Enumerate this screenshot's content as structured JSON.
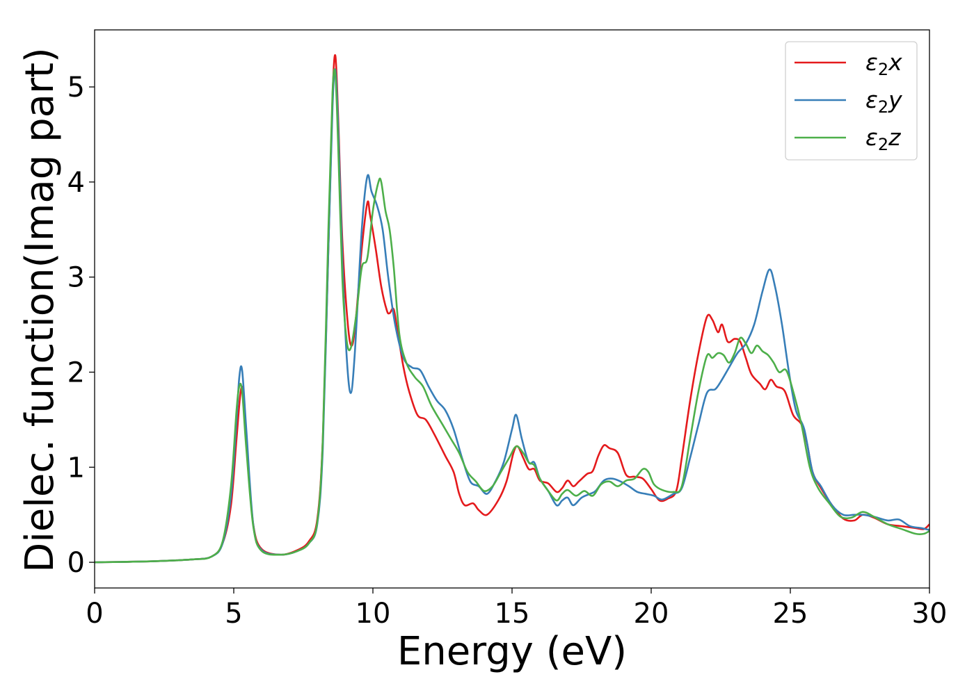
{
  "chart_data": {
    "type": "line",
    "title": "",
    "xlabel": "Energy (eV)",
    "ylabel": "Dielec. function(Imag part)",
    "xlim": [
      0,
      30
    ],
    "ylim": [
      -0.27,
      5.6
    ],
    "xticks": [
      0,
      5,
      10,
      15,
      20,
      25,
      30
    ],
    "yticks": [
      0,
      1,
      2,
      3,
      4,
      5
    ],
    "grid": false,
    "legend_position": "upper right",
    "series": [
      {
        "name": "ε₂x",
        "legend_base": "ε",
        "legend_sub": "2",
        "legend_var": "x",
        "color": "#e41a1c",
        "points": [
          [
            0,
            0
          ],
          [
            2,
            0.01
          ],
          [
            3.5,
            0.03
          ],
          [
            4.2,
            0.06
          ],
          [
            4.6,
            0.2
          ],
          [
            4.9,
            0.6
          ],
          [
            5.1,
            1.3
          ],
          [
            5.25,
            1.8
          ],
          [
            5.35,
            1.75
          ],
          [
            5.5,
            1.1
          ],
          [
            5.7,
            0.4
          ],
          [
            6,
            0.14
          ],
          [
            6.7,
            0.08
          ],
          [
            7.3,
            0.13
          ],
          [
            7.7,
            0.22
          ],
          [
            8,
            0.45
          ],
          [
            8.2,
            1.3
          ],
          [
            8.4,
            3.3
          ],
          [
            8.55,
            4.9
          ],
          [
            8.65,
            5.33
          ],
          [
            8.75,
            4.7
          ],
          [
            8.9,
            3.4
          ],
          [
            9.1,
            2.5
          ],
          [
            9.25,
            2.28
          ],
          [
            9.4,
            2.6
          ],
          [
            9.6,
            3.3
          ],
          [
            9.8,
            3.78
          ],
          [
            9.9,
            3.65
          ],
          [
            10.1,
            3.3
          ],
          [
            10.3,
            2.9
          ],
          [
            10.5,
            2.65
          ],
          [
            10.6,
            2.62
          ],
          [
            10.75,
            2.66
          ],
          [
            10.9,
            2.4
          ],
          [
            11.1,
            2.05
          ],
          [
            11.3,
            1.8
          ],
          [
            11.6,
            1.55
          ],
          [
            11.9,
            1.5
          ],
          [
            12.2,
            1.35
          ],
          [
            12.6,
            1.12
          ],
          [
            12.9,
            0.95
          ],
          [
            13.1,
            0.72
          ],
          [
            13.3,
            0.6
          ],
          [
            13.6,
            0.62
          ],
          [
            13.8,
            0.55
          ],
          [
            14.1,
            0.5
          ],
          [
            14.5,
            0.65
          ],
          [
            14.8,
            0.85
          ],
          [
            15.05,
            1.15
          ],
          [
            15.2,
            1.22
          ],
          [
            15.4,
            1.1
          ],
          [
            15.6,
            0.98
          ],
          [
            15.8,
            0.98
          ],
          [
            16,
            0.86
          ],
          [
            16.3,
            0.83
          ],
          [
            16.6,
            0.74
          ],
          [
            16.8,
            0.78
          ],
          [
            17,
            0.86
          ],
          [
            17.2,
            0.8
          ],
          [
            17.4,
            0.85
          ],
          [
            17.7,
            0.93
          ],
          [
            17.9,
            0.96
          ],
          [
            18.1,
            1.12
          ],
          [
            18.3,
            1.23
          ],
          [
            18.5,
            1.2
          ],
          [
            18.8,
            1.15
          ],
          [
            19.1,
            0.92
          ],
          [
            19.4,
            0.9
          ],
          [
            19.7,
            0.88
          ],
          [
            20,
            0.77
          ],
          [
            20.3,
            0.65
          ],
          [
            20.6,
            0.67
          ],
          [
            20.9,
            0.75
          ],
          [
            21.1,
            1.1
          ],
          [
            21.4,
            1.7
          ],
          [
            21.7,
            2.2
          ],
          [
            22,
            2.58
          ],
          [
            22.2,
            2.55
          ],
          [
            22.4,
            2.42
          ],
          [
            22.55,
            2.5
          ],
          [
            22.75,
            2.32
          ],
          [
            23,
            2.35
          ],
          [
            23.2,
            2.32
          ],
          [
            23.4,
            2.15
          ],
          [
            23.6,
            1.98
          ],
          [
            23.9,
            1.88
          ],
          [
            24.1,
            1.82
          ],
          [
            24.3,
            1.92
          ],
          [
            24.5,
            1.85
          ],
          [
            24.8,
            1.8
          ],
          [
            25.1,
            1.55
          ],
          [
            25.4,
            1.45
          ],
          [
            25.6,
            1.25
          ],
          [
            25.8,
            0.95
          ],
          [
            26.1,
            0.78
          ],
          [
            26.5,
            0.6
          ],
          [
            26.9,
            0.46
          ],
          [
            27.3,
            0.44
          ],
          [
            27.6,
            0.5
          ],
          [
            28,
            0.47
          ],
          [
            28.5,
            0.4
          ],
          [
            29,
            0.38
          ],
          [
            29.5,
            0.36
          ],
          [
            29.8,
            0.35
          ],
          [
            30,
            0.4
          ]
        ]
      },
      {
        "name": "ε₂y",
        "legend_base": "ε",
        "legend_sub": "2",
        "legend_var": "y",
        "color": "#377eb8",
        "points": [
          [
            0,
            0
          ],
          [
            2,
            0.01
          ],
          [
            3.5,
            0.03
          ],
          [
            4.2,
            0.06
          ],
          [
            4.6,
            0.2
          ],
          [
            4.9,
            0.7
          ],
          [
            5.1,
            1.5
          ],
          [
            5.2,
            1.95
          ],
          [
            5.3,
            2.02
          ],
          [
            5.45,
            1.4
          ],
          [
            5.7,
            0.4
          ],
          [
            6,
            0.13
          ],
          [
            6.7,
            0.08
          ],
          [
            7.3,
            0.12
          ],
          [
            7.7,
            0.2
          ],
          [
            8,
            0.4
          ],
          [
            8.2,
            1.2
          ],
          [
            8.4,
            3.3
          ],
          [
            8.55,
            4.8
          ],
          [
            8.65,
            5.18
          ],
          [
            8.75,
            4.6
          ],
          [
            8.9,
            3.2
          ],
          [
            9.05,
            2.2
          ],
          [
            9.2,
            1.78
          ],
          [
            9.35,
            2.2
          ],
          [
            9.6,
            3.5
          ],
          [
            9.8,
            4.06
          ],
          [
            9.95,
            3.9
          ],
          [
            10.15,
            3.75
          ],
          [
            10.35,
            3.5
          ],
          [
            10.55,
            3.0
          ],
          [
            10.8,
            2.5
          ],
          [
            11.1,
            2.15
          ],
          [
            11.4,
            2.05
          ],
          [
            11.7,
            2.02
          ],
          [
            12,
            1.85
          ],
          [
            12.3,
            1.7
          ],
          [
            12.6,
            1.6
          ],
          [
            12.9,
            1.4
          ],
          [
            13.2,
            1.1
          ],
          [
            13.5,
            0.85
          ],
          [
            13.8,
            0.8
          ],
          [
            14.1,
            0.72
          ],
          [
            14.4,
            0.85
          ],
          [
            14.7,
            1.05
          ],
          [
            15,
            1.4
          ],
          [
            15.15,
            1.55
          ],
          [
            15.35,
            1.3
          ],
          [
            15.6,
            1.05
          ],
          [
            15.8,
            1.05
          ],
          [
            16,
            0.88
          ],
          [
            16.3,
            0.75
          ],
          [
            16.6,
            0.6
          ],
          [
            16.8,
            0.65
          ],
          [
            17,
            0.68
          ],
          [
            17.2,
            0.6
          ],
          [
            17.5,
            0.68
          ],
          [
            17.8,
            0.72
          ],
          [
            18,
            0.75
          ],
          [
            18.3,
            0.86
          ],
          [
            18.6,
            0.88
          ],
          [
            18.9,
            0.85
          ],
          [
            19.2,
            0.8
          ],
          [
            19.5,
            0.74
          ],
          [
            19.8,
            0.72
          ],
          [
            20.1,
            0.7
          ],
          [
            20.4,
            0.66
          ],
          [
            20.8,
            0.72
          ],
          [
            21.1,
            0.78
          ],
          [
            21.4,
            1.1
          ],
          [
            21.7,
            1.45
          ],
          [
            22,
            1.78
          ],
          [
            22.3,
            1.82
          ],
          [
            22.5,
            1.9
          ],
          [
            22.8,
            2.05
          ],
          [
            23.1,
            2.2
          ],
          [
            23.4,
            2.3
          ],
          [
            23.7,
            2.5
          ],
          [
            24,
            2.85
          ],
          [
            24.25,
            3.08
          ],
          [
            24.45,
            2.9
          ],
          [
            24.7,
            2.5
          ],
          [
            24.95,
            2.0
          ],
          [
            25.2,
            1.6
          ],
          [
            25.5,
            1.4
          ],
          [
            25.8,
            0.95
          ],
          [
            26.1,
            0.8
          ],
          [
            26.5,
            0.6
          ],
          [
            26.9,
            0.5
          ],
          [
            27.3,
            0.5
          ],
          [
            27.6,
            0.5
          ],
          [
            28,
            0.48
          ],
          [
            28.5,
            0.44
          ],
          [
            28.9,
            0.45
          ],
          [
            29.3,
            0.38
          ],
          [
            29.7,
            0.36
          ],
          [
            30,
            0.34
          ]
        ]
      },
      {
        "name": "ε₂z",
        "legend_base": "ε",
        "legend_sub": "2",
        "legend_var": "z",
        "color": "#4daf4a",
        "points": [
          [
            0,
            0
          ],
          [
            2,
            0.01
          ],
          [
            3.5,
            0.03
          ],
          [
            4.2,
            0.06
          ],
          [
            4.6,
            0.22
          ],
          [
            4.9,
            0.8
          ],
          [
            5.1,
            1.6
          ],
          [
            5.2,
            1.85
          ],
          [
            5.3,
            1.8
          ],
          [
            5.45,
            1.2
          ],
          [
            5.7,
            0.38
          ],
          [
            6,
            0.12
          ],
          [
            6.7,
            0.08
          ],
          [
            7.3,
            0.12
          ],
          [
            7.7,
            0.2
          ],
          [
            8,
            0.42
          ],
          [
            8.2,
            1.3
          ],
          [
            8.4,
            3.5
          ],
          [
            8.55,
            4.95
          ],
          [
            8.65,
            5.13
          ],
          [
            8.75,
            4.4
          ],
          [
            8.9,
            3.0
          ],
          [
            9.05,
            2.35
          ],
          [
            9.2,
            2.25
          ],
          [
            9.4,
            2.6
          ],
          [
            9.6,
            3.1
          ],
          [
            9.8,
            3.2
          ],
          [
            10,
            3.7
          ],
          [
            10.2,
            4.0
          ],
          [
            10.3,
            4.0
          ],
          [
            10.45,
            3.7
          ],
          [
            10.6,
            3.5
          ],
          [
            10.75,
            3.1
          ],
          [
            10.95,
            2.4
          ],
          [
            11.2,
            2.1
          ],
          [
            11.5,
            1.95
          ],
          [
            11.8,
            1.85
          ],
          [
            12.1,
            1.65
          ],
          [
            12.5,
            1.45
          ],
          [
            12.8,
            1.3
          ],
          [
            13.1,
            1.15
          ],
          [
            13.4,
            0.95
          ],
          [
            13.7,
            0.85
          ],
          [
            14,
            0.75
          ],
          [
            14.3,
            0.8
          ],
          [
            14.6,
            0.95
          ],
          [
            14.9,
            1.1
          ],
          [
            15.15,
            1.22
          ],
          [
            15.4,
            1.15
          ],
          [
            15.6,
            1.05
          ],
          [
            15.8,
            1.02
          ],
          [
            16,
            0.88
          ],
          [
            16.3,
            0.75
          ],
          [
            16.6,
            0.65
          ],
          [
            16.8,
            0.72
          ],
          [
            17,
            0.76
          ],
          [
            17.3,
            0.7
          ],
          [
            17.6,
            0.75
          ],
          [
            17.9,
            0.7
          ],
          [
            18.2,
            0.82
          ],
          [
            18.5,
            0.85
          ],
          [
            18.8,
            0.8
          ],
          [
            19.1,
            0.86
          ],
          [
            19.4,
            0.88
          ],
          [
            19.7,
            0.98
          ],
          [
            19.9,
            0.95
          ],
          [
            20.1,
            0.82
          ],
          [
            20.4,
            0.76
          ],
          [
            20.8,
            0.74
          ],
          [
            21.1,
            0.8
          ],
          [
            21.4,
            1.3
          ],
          [
            21.7,
            1.8
          ],
          [
            22,
            2.17
          ],
          [
            22.2,
            2.15
          ],
          [
            22.4,
            2.2
          ],
          [
            22.6,
            2.18
          ],
          [
            22.8,
            2.1
          ],
          [
            23,
            2.2
          ],
          [
            23.2,
            2.36
          ],
          [
            23.4,
            2.3
          ],
          [
            23.6,
            2.2
          ],
          [
            23.8,
            2.28
          ],
          [
            24,
            2.22
          ],
          [
            24.2,
            2.18
          ],
          [
            24.4,
            2.1
          ],
          [
            24.6,
            2.0
          ],
          [
            24.85,
            2.02
          ],
          [
            25.1,
            1.8
          ],
          [
            25.4,
            1.45
          ],
          [
            25.7,
            1.0
          ],
          [
            26,
            0.78
          ],
          [
            26.4,
            0.62
          ],
          [
            26.8,
            0.48
          ],
          [
            27.2,
            0.47
          ],
          [
            27.6,
            0.53
          ],
          [
            28,
            0.48
          ],
          [
            28.5,
            0.4
          ],
          [
            29,
            0.35
          ],
          [
            29.5,
            0.3
          ],
          [
            29.8,
            0.3
          ],
          [
            30,
            0.33
          ]
        ]
      }
    ]
  }
}
